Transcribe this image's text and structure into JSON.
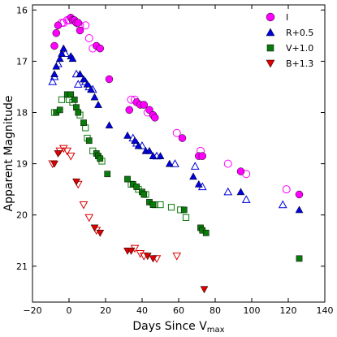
{
  "chart_data": {
    "type": "scatter",
    "title": "",
    "xlabel": "Days Since V",
    "xlabel_subscript": "max",
    "ylabel": "Apparent Magnitude",
    "xlim": [
      -20,
      140
    ],
    "ylim": [
      21.7,
      15.9
    ],
    "y_inverted": true,
    "grid": false,
    "legend_position": "top-right",
    "xticks": [
      -20,
      0,
      20,
      40,
      60,
      80,
      100,
      120,
      140
    ],
    "yticks": [
      16,
      17,
      18,
      19,
      20,
      21
    ],
    "series": [
      {
        "name": "I",
        "marker": "circle",
        "color": "#ff00ff",
        "filled": [
          [
            -8,
            16.7
          ],
          [
            -7,
            16.45
          ],
          [
            -6,
            16.3
          ],
          [
            1,
            16.15
          ],
          [
            2,
            16.2
          ],
          [
            3,
            16.2
          ],
          [
            4,
            16.25
          ],
          [
            5,
            16.25
          ],
          [
            6,
            16.4
          ],
          [
            15,
            16.7
          ],
          [
            17,
            16.75
          ],
          [
            22,
            17.35
          ],
          [
            33,
            17.95
          ],
          [
            37,
            17.8
          ],
          [
            39,
            17.85
          ],
          [
            41,
            17.85
          ],
          [
            44,
            17.95
          ],
          [
            46,
            18.05
          ],
          [
            47,
            18.1
          ],
          [
            62,
            18.5
          ],
          [
            71,
            18.85
          ],
          [
            73,
            18.85
          ],
          [
            94,
            19.15
          ],
          [
            126,
            19.6
          ]
        ],
        "open": [
          [
            -4,
            16.25
          ],
          [
            -3,
            16.25
          ],
          [
            -1,
            16.2
          ],
          [
            0,
            16.2
          ],
          [
            6,
            16.3
          ],
          [
            9,
            16.3
          ],
          [
            11,
            16.55
          ],
          [
            13,
            16.75
          ],
          [
            34,
            17.75
          ],
          [
            36,
            17.75
          ],
          [
            43,
            18.0
          ],
          [
            59,
            18.4
          ],
          [
            72,
            18.75
          ],
          [
            87,
            19.0
          ],
          [
            97,
            19.2
          ],
          [
            119,
            19.5
          ]
        ]
      },
      {
        "name": "R+0.5",
        "marker": "triangle-up",
        "color": "#0000dd",
        "filled": [
          [
            -8,
            17.25
          ],
          [
            -7,
            17.1
          ],
          [
            -5,
            16.95
          ],
          [
            -4,
            16.85
          ],
          [
            -3,
            16.75
          ],
          [
            1,
            16.9
          ],
          [
            2,
            16.95
          ],
          [
            6,
            17.25
          ],
          [
            8,
            17.35
          ],
          [
            10,
            17.45
          ],
          [
            12,
            17.55
          ],
          [
            14,
            17.7
          ],
          [
            16,
            17.85
          ],
          [
            22,
            18.25
          ],
          [
            32,
            18.45
          ],
          [
            36,
            18.55
          ],
          [
            38,
            18.65
          ],
          [
            42,
            18.75
          ],
          [
            44,
            18.75
          ],
          [
            46,
            18.85
          ],
          [
            50,
            18.85
          ],
          [
            55,
            19.0
          ],
          [
            68,
            19.25
          ],
          [
            71,
            19.4
          ],
          [
            94,
            19.55
          ],
          [
            126,
            19.9
          ]
        ],
        "open": [
          [
            -9,
            17.4
          ],
          [
            -8,
            17.3
          ],
          [
            -6,
            17.05
          ],
          [
            -2,
            16.85
          ],
          [
            4,
            17.25
          ],
          [
            5,
            17.45
          ],
          [
            9,
            17.4
          ],
          [
            11,
            17.5
          ],
          [
            13,
            17.55
          ],
          [
            35,
            18.5
          ],
          [
            37,
            18.6
          ],
          [
            40,
            18.65
          ],
          [
            48,
            18.85
          ],
          [
            58,
            19.0
          ],
          [
            69,
            19.05
          ],
          [
            73,
            19.45
          ],
          [
            87,
            19.55
          ],
          [
            97,
            19.7
          ],
          [
            117,
            19.8
          ]
        ]
      },
      {
        "name": "V+1.0",
        "marker": "square",
        "color": "#0a7a0a",
        "filled": [
          [
            -7,
            18.0
          ],
          [
            -5,
            17.95
          ],
          [
            -1,
            17.65
          ],
          [
            1,
            17.65
          ],
          [
            3,
            17.75
          ],
          [
            4,
            17.9
          ],
          [
            5,
            18.0
          ],
          [
            8,
            18.2
          ],
          [
            11,
            18.55
          ],
          [
            15,
            18.8
          ],
          [
            16,
            18.85
          ],
          [
            17,
            18.9
          ],
          [
            21,
            19.2
          ],
          [
            32,
            19.3
          ],
          [
            35,
            19.4
          ],
          [
            37,
            19.45
          ],
          [
            40,
            19.55
          ],
          [
            41,
            19.6
          ],
          [
            44,
            19.75
          ],
          [
            46,
            19.8
          ],
          [
            63,
            19.9
          ],
          [
            72,
            20.25
          ],
          [
            73,
            20.3
          ],
          [
            75,
            20.35
          ],
          [
            126,
            20.85
          ]
        ],
        "open": [
          [
            -8,
            18.0
          ],
          [
            -4,
            17.75
          ],
          [
            0,
            17.75
          ],
          [
            2,
            17.8
          ],
          [
            6,
            18.05
          ],
          [
            9,
            18.3
          ],
          [
            10,
            18.5
          ],
          [
            13,
            18.75
          ],
          [
            18,
            18.95
          ],
          [
            34,
            19.4
          ],
          [
            38,
            19.5
          ],
          [
            42,
            19.6
          ],
          [
            47,
            19.8
          ],
          [
            50,
            19.8
          ],
          [
            56,
            19.85
          ],
          [
            61,
            19.9
          ],
          [
            64,
            20.05
          ]
        ]
      },
      {
        "name": "B+1.3",
        "marker": "triangle-down",
        "color": "#dd0000",
        "filled": [
          [
            -8,
            19.0
          ],
          [
            -6,
            18.8
          ],
          [
            4,
            19.35
          ],
          [
            14,
            20.25
          ],
          [
            17,
            20.35
          ],
          [
            32,
            20.7
          ],
          [
            34,
            20.7
          ],
          [
            43,
            20.8
          ],
          [
            46,
            20.85
          ],
          [
            74,
            21.45
          ]
        ],
        "open": [
          [
            -9,
            19.0
          ],
          [
            -5,
            18.75
          ],
          [
            -3,
            18.7
          ],
          [
            -1,
            18.75
          ],
          [
            1,
            18.85
          ],
          [
            5,
            19.4
          ],
          [
            8,
            19.8
          ],
          [
            11,
            20.05
          ],
          [
            15,
            20.3
          ],
          [
            36,
            20.65
          ],
          [
            39,
            20.75
          ],
          [
            41,
            20.8
          ],
          [
            48,
            20.85
          ],
          [
            59,
            20.8
          ]
        ]
      }
    ]
  }
}
